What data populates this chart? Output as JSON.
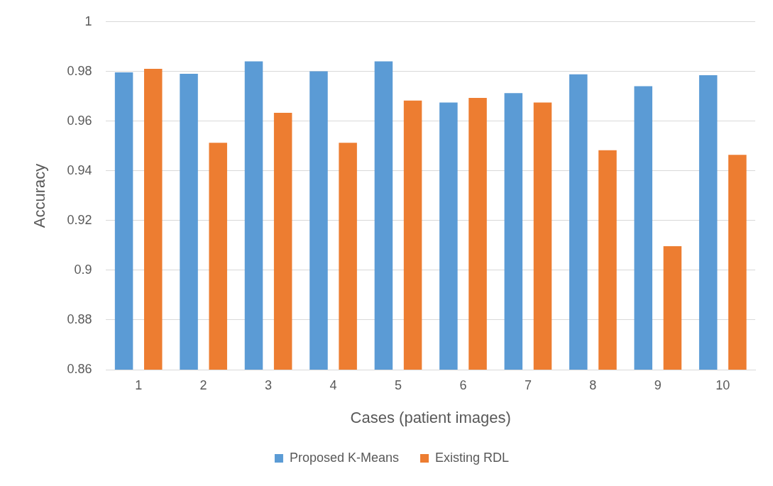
{
  "chart_data": {
    "type": "bar",
    "xlabel": "Cases (patient images)",
    "ylabel": "Accuracy",
    "categories": [
      "1",
      "2",
      "3",
      "4",
      "5",
      "6",
      "7",
      "8",
      "9",
      "10"
    ],
    "series": [
      {
        "name": "Proposed K-Means",
        "color": "#5b9bd5",
        "values": [
          0.9797,
          0.9791,
          0.9841,
          0.9801,
          0.9841,
          0.9675,
          0.9713,
          0.9789,
          0.9741,
          0.9785
        ]
      },
      {
        "name": "Existing RDL",
        "color": "#ed7d31",
        "values": [
          0.9811,
          0.9513,
          0.9634,
          0.9513,
          0.9683,
          0.9694,
          0.9675,
          0.9483,
          0.9097,
          0.9465
        ]
      }
    ],
    "ylim": [
      0.86,
      1
    ],
    "yticks": [
      0.86,
      0.88,
      0.9,
      0.92,
      0.94,
      0.96,
      0.98,
      1
    ],
    "grid": "y",
    "legend": "bottom"
  }
}
